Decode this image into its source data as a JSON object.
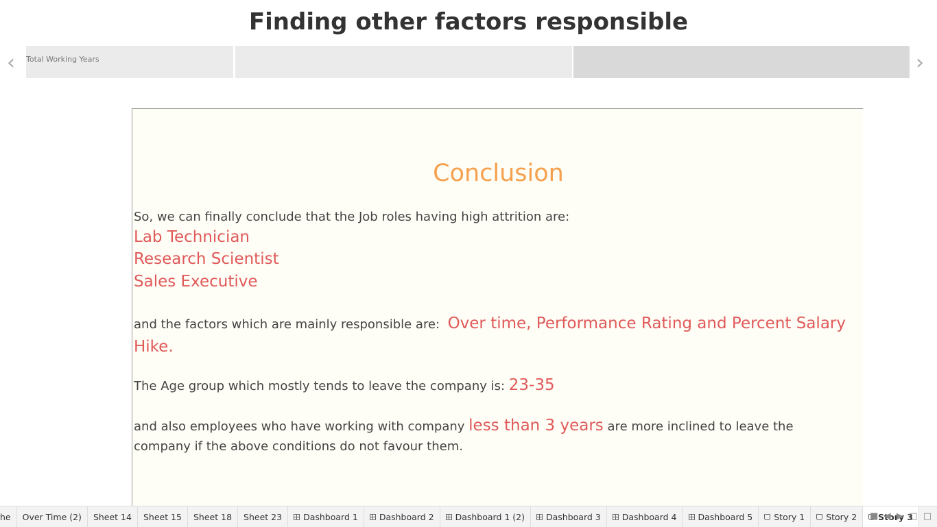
{
  "header": {
    "title": "Finding other factors responsible"
  },
  "story_points": [
    "Total Working Years"
  ],
  "conclusion": {
    "heading": "Conclusion",
    "intro": "So, we can finally conclude that the Job roles having high attrition are:",
    "roles": [
      "Lab Technician",
      "Research Scientist",
      "Sales Executive"
    ],
    "factors_intro": "and the factors which are mainly responsible are:",
    "factors": "Over time, Performance Rating and Percent Salary Hike.",
    "age_intro": "The Age group which mostly tends to leave the company is:",
    "age": "23-35",
    "tenure_before": "and also employees who have working with company",
    "tenure": "less than 3 years",
    "tenure_after": "are more inclined to leave the company if the above conditions do not favour them."
  },
  "tabs": [
    "he",
    "Over Time (2)",
    "Sheet 14",
    "Sheet 15",
    "Sheet 18",
    "Sheet 23",
    "Dashboard 1",
    "Dashboard 2",
    "Dashboard 1 (2)",
    "Dashboard 3",
    "Dashboard 4",
    "Dashboard 5",
    "Story 1",
    "Story 2",
    "Story 3"
  ]
}
